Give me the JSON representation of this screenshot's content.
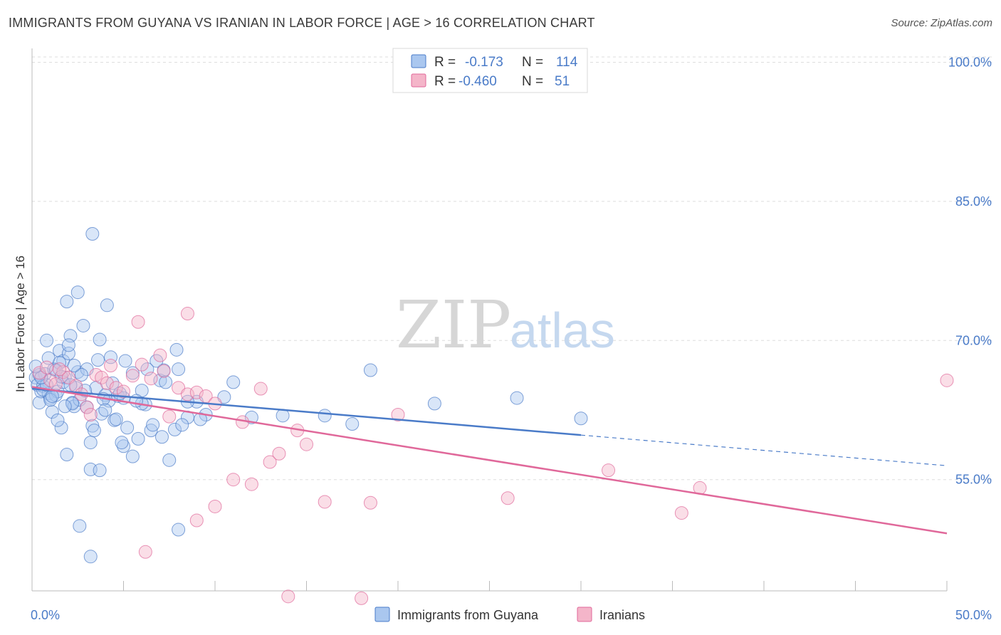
{
  "title": "IMMIGRANTS FROM GUYANA VS IRANIAN IN LABOR FORCE | AGE > 16 CORRELATION CHART",
  "source": "Source: ZipAtlas.com",
  "watermark": {
    "zip": "ZIP",
    "atlas": "atlas"
  },
  "colors": {
    "blue": "#4a7bc8",
    "blue_fill": "#aac7ef",
    "pink": "#e0689a",
    "pink_fill": "#f4b5c9",
    "grid": "#dddddd",
    "axis": "#bbbbbb"
  },
  "legend": {
    "rows": [
      {
        "r_label": "R =",
        "r_value": "-0.173",
        "n_label": "N =",
        "n_value": "114"
      },
      {
        "r_label": "R =",
        "r_value": "-0.460",
        "n_label": "N =",
        "n_value": "51"
      }
    ]
  },
  "chart_data": {
    "type": "scatter",
    "ylabel": "In Labor Force | Age > 16",
    "xlim": [
      0,
      50
    ],
    "ylim": [
      43,
      101.5
    ],
    "y_ticks": [
      55,
      70,
      85,
      100
    ],
    "y_tick_labels": [
      "55.0%",
      "70.0%",
      "85.0%",
      "100.0%"
    ],
    "x_tick_labels": [
      "0.0%",
      "50.0%"
    ],
    "grid": true,
    "legend_position": "top-center",
    "series": [
      {
        "name": "Immigrants from Guyana",
        "color": "#4a7bc8",
        "points": [
          [
            0.2,
            66.0
          ],
          [
            0.3,
            65.2
          ],
          [
            0.4,
            63.3
          ],
          [
            0.5,
            64.5
          ],
          [
            0.6,
            65.1
          ],
          [
            0.7,
            66.4
          ],
          [
            0.8,
            70.0
          ],
          [
            0.9,
            64.3
          ],
          [
            1.0,
            63.8
          ],
          [
            1.1,
            62.3
          ],
          [
            1.2,
            66.9
          ],
          [
            1.3,
            64.1
          ],
          [
            1.4,
            64.5
          ],
          [
            1.5,
            68.9
          ],
          [
            1.6,
            60.6
          ],
          [
            1.7,
            67.8
          ],
          [
            1.8,
            66.0
          ],
          [
            1.9,
            57.7
          ],
          [
            2.0,
            68.6
          ],
          [
            2.1,
            70.5
          ],
          [
            2.2,
            63.3
          ],
          [
            2.3,
            62.9
          ],
          [
            2.4,
            64.9
          ],
          [
            2.5,
            66.6
          ],
          [
            2.6,
            63.6
          ],
          [
            2.8,
            71.6
          ],
          [
            3.0,
            66.9
          ],
          [
            3.2,
            59.0
          ],
          [
            3.3,
            60.8
          ],
          [
            3.5,
            64.9
          ],
          [
            3.6,
            67.9
          ],
          [
            3.8,
            62.1
          ],
          [
            4.0,
            64.1
          ],
          [
            4.2,
            63.5
          ],
          [
            4.5,
            61.4
          ],
          [
            4.7,
            64.0
          ],
          [
            5.0,
            58.6
          ],
          [
            5.2,
            60.6
          ],
          [
            5.5,
            57.5
          ],
          [
            5.8,
            59.4
          ],
          [
            6.0,
            64.6
          ],
          [
            6.2,
            63.1
          ],
          [
            6.5,
            60.3
          ],
          [
            7.0,
            65.7
          ],
          [
            7.2,
            66.8
          ],
          [
            7.5,
            57.1
          ],
          [
            7.8,
            60.4
          ],
          [
            8.0,
            66.9
          ],
          [
            8.5,
            61.7
          ],
          [
            9.0,
            63.4
          ],
          [
            3.3,
            81.5
          ],
          [
            2.5,
            75.2
          ],
          [
            4.1,
            73.8
          ],
          [
            1.9,
            74.2
          ],
          [
            3.7,
            70.1
          ],
          [
            2.0,
            69.5
          ],
          [
            0.9,
            68.1
          ],
          [
            1.5,
            67.6
          ],
          [
            2.7,
            66.3
          ],
          [
            4.3,
            68.2
          ],
          [
            5.5,
            66.5
          ],
          [
            6.8,
            67.8
          ],
          [
            7.9,
            69.0
          ],
          [
            7.3,
            65.5
          ],
          [
            8.5,
            63.4
          ],
          [
            9.5,
            62.0
          ],
          [
            10.5,
            63.9
          ],
          [
            11.0,
            65.5
          ],
          [
            12.0,
            61.7
          ],
          [
            13.7,
            61.9
          ],
          [
            16.0,
            61.9
          ],
          [
            17.5,
            61.0
          ],
          [
            18.5,
            66.8
          ],
          [
            22.0,
            63.2
          ],
          [
            26.5,
            63.8
          ],
          [
            30.0,
            61.6
          ],
          [
            2.6,
            50.0
          ],
          [
            3.2,
            46.7
          ],
          [
            8.0,
            49.6
          ],
          [
            3.2,
            56.1
          ],
          [
            3.7,
            56.0
          ],
          [
            4.6,
            61.5
          ],
          [
            6.0,
            63.2
          ],
          [
            5.0,
            63.8
          ],
          [
            2.2,
            63.2
          ],
          [
            1.0,
            63.6
          ],
          [
            0.6,
            64.7
          ],
          [
            0.4,
            66.3
          ],
          [
            1.3,
            66.8
          ],
          [
            1.7,
            65.5
          ],
          [
            2.3,
            67.3
          ],
          [
            0.8,
            65.2
          ],
          [
            1.6,
            66.1
          ],
          [
            4.8,
            64.3
          ],
          [
            5.1,
            67.8
          ],
          [
            6.3,
            66.9
          ],
          [
            3.9,
            63.7
          ],
          [
            4.4,
            65.4
          ],
          [
            2.9,
            64.6
          ],
          [
            1.1,
            64.0
          ],
          [
            0.5,
            66.0
          ],
          [
            0.2,
            67.2
          ],
          [
            1.8,
            62.9
          ],
          [
            3.4,
            60.3
          ],
          [
            4.0,
            62.5
          ],
          [
            6.6,
            60.9
          ],
          [
            7.1,
            59.6
          ],
          [
            8.2,
            60.9
          ],
          [
            9.2,
            61.5
          ],
          [
            5.7,
            63.5
          ],
          [
            2.1,
            65.2
          ],
          [
            3.0,
            62.8
          ],
          [
            1.4,
            61.4
          ],
          [
            4.9,
            59.0
          ]
        ]
      },
      {
        "name": "Iranians",
        "color": "#e0689a",
        "points": [
          [
            0.4,
            66.5
          ],
          [
            0.8,
            67.1
          ],
          [
            1.0,
            65.7
          ],
          [
            1.3,
            65.3
          ],
          [
            1.7,
            66.6
          ],
          [
            2.0,
            66.0
          ],
          [
            2.4,
            65.1
          ],
          [
            2.7,
            64.2
          ],
          [
            3.0,
            62.8
          ],
          [
            3.2,
            62.0
          ],
          [
            3.5,
            66.3
          ],
          [
            3.8,
            66.0
          ],
          [
            4.1,
            65.4
          ],
          [
            4.3,
            67.3
          ],
          [
            4.6,
            64.9
          ],
          [
            5.0,
            64.5
          ],
          [
            5.5,
            66.2
          ],
          [
            6.0,
            67.4
          ],
          [
            6.5,
            65.9
          ],
          [
            7.0,
            68.4
          ],
          [
            7.2,
            66.7
          ],
          [
            7.5,
            61.8
          ],
          [
            8.0,
            64.9
          ],
          [
            8.5,
            64.2
          ],
          [
            9.0,
            64.4
          ],
          [
            9.5,
            64.0
          ],
          [
            10.0,
            63.2
          ],
          [
            11.0,
            55.0
          ],
          [
            11.5,
            61.2
          ],
          [
            12.0,
            54.5
          ],
          [
            12.5,
            64.8
          ],
          [
            13.0,
            56.9
          ],
          [
            13.5,
            57.8
          ],
          [
            14.5,
            60.3
          ],
          [
            15.0,
            58.8
          ],
          [
            16.0,
            52.6
          ],
          [
            18.5,
            52.5
          ],
          [
            20.0,
            62.0
          ],
          [
            26.0,
            53.0
          ],
          [
            31.5,
            56.0
          ],
          [
            35.5,
            51.4
          ],
          [
            36.5,
            54.1
          ],
          [
            50.0,
            65.7
          ],
          [
            5.8,
            72.0
          ],
          [
            8.5,
            72.9
          ],
          [
            6.2,
            47.2
          ],
          [
            14.0,
            42.4
          ],
          [
            18.0,
            42.2
          ],
          [
            10.0,
            52.1
          ],
          [
            9.0,
            50.6
          ],
          [
            1.5,
            66.9
          ]
        ]
      }
    ],
    "trend_lines": [
      {
        "series": "Immigrants from Guyana",
        "solid": [
          [
            0.0,
            64.8
          ],
          [
            30.0,
            59.8
          ]
        ],
        "dashed": [
          [
            30.0,
            59.8
          ],
          [
            50.0,
            56.5
          ]
        ]
      },
      {
        "series": "Iranians",
        "solid": [
          [
            0.0,
            65.0
          ],
          [
            50.0,
            49.2
          ]
        ]
      }
    ]
  }
}
